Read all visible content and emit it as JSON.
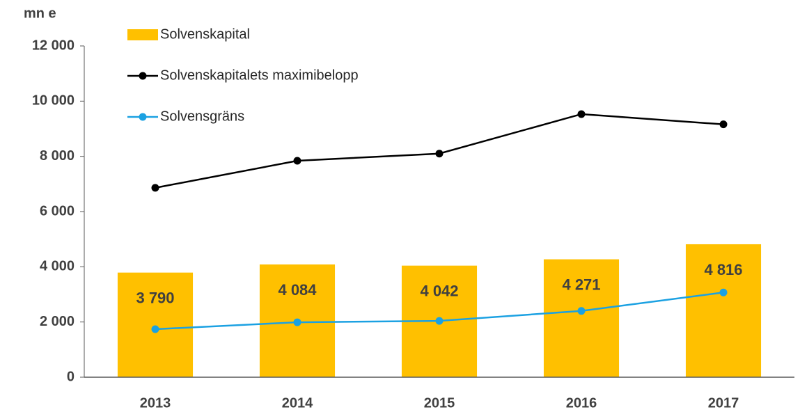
{
  "chart_data": {
    "type": "bar-line",
    "y_axis_label": "mn e",
    "categories": [
      "2013",
      "2014",
      "2015",
      "2016",
      "2017"
    ],
    "series": [
      {
        "name": "Solvenskapital",
        "type": "bar",
        "color": "#ffc000",
        "values": [
          3790,
          4084,
          4042,
          4271,
          4816
        ],
        "value_labels": [
          "3 790",
          "4 084",
          "4 042",
          "4 271",
          "4 816"
        ]
      },
      {
        "name": "Solvenskapitalets maximibelopp",
        "type": "line",
        "color": "#000000",
        "values": [
          6860,
          7840,
          8100,
          9530,
          9160
        ]
      },
      {
        "name": "Solvensgräns",
        "type": "line",
        "color": "#1ba1e2",
        "values": [
          1740,
          1990,
          2040,
          2400,
          3070
        ]
      }
    ],
    "ylim": [
      0,
      12000
    ],
    "yticks": [
      0,
      {
        "value": 2000,
        "label": "2 000"
      },
      {
        "value": 4000,
        "label": "4 000"
      },
      {
        "value": 6000,
        "label": "6 000"
      },
      {
        "value": 8000,
        "label": "8 000"
      },
      {
        "value": 10000,
        "label": "10 000"
      },
      {
        "value": 12000,
        "label": "12 000"
      }
    ],
    "grid": false,
    "legend": "top-left"
  }
}
